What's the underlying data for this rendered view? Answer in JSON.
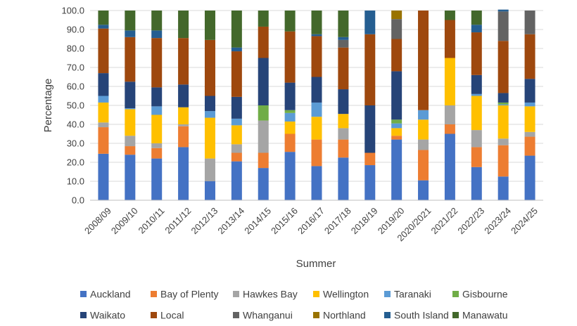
{
  "chart_data": {
    "type": "bar",
    "stacked": true,
    "title": "",
    "xlabel": "Summer",
    "ylabel": "Percentage",
    "ylim": [
      0,
      100
    ],
    "yticks": [
      "0.0",
      "10.0",
      "20.0",
      "30.0",
      "40.0",
      "50.0",
      "60.0",
      "70.0",
      "80.0",
      "90.0",
      "100.0"
    ],
    "grid": true,
    "legend_position": "bottom",
    "categories": [
      "2008/09",
      "2009/10",
      "2010/11",
      "2011/12",
      "2012/13",
      "2013/14",
      "2014/15",
      "2015/16",
      "2016/17",
      "2017/18",
      "2018/19",
      "2019/20",
      "2020/2021",
      "2021/22",
      "2022/23",
      "2023/24",
      "2024/25"
    ],
    "series": [
      {
        "name": "Auckland",
        "color": "#4472C4",
        "values": [
          24.5,
          24.0,
          22.0,
          28.0,
          10.0,
          20.5,
          17.0,
          25.5,
          18.0,
          22.5,
          18.5,
          32.0,
          10.5,
          35.0,
          17.5,
          12.5,
          23.5
        ]
      },
      {
        "name": "Bay of Plenty",
        "color": "#ED7D31",
        "values": [
          14.0,
          4.5,
          5.5,
          11.0,
          0,
          4.5,
          8.0,
          9.5,
          14.0,
          9.5,
          6.5,
          2.0,
          16.0,
          5.0,
          10.5,
          16.5,
          10.0
        ]
      },
      {
        "name": "Hawkes Bay",
        "color": "#A5A5A5",
        "values": [
          2.5,
          5.5,
          2.5,
          1.0,
          12.0,
          4.5,
          17.0,
          0,
          0,
          6.0,
          0,
          0,
          5.5,
          10.0,
          9.0,
          3.5,
          2.5
        ]
      },
      {
        "name": "Wellington",
        "color": "#FFC000",
        "values": [
          10.5,
          14.0,
          15.0,
          9.0,
          21.5,
          10.0,
          0,
          6.5,
          12.0,
          7.5,
          0,
          4.0,
          10.5,
          25.0,
          18.0,
          17.5,
          13.5
        ]
      },
      {
        "name": "Taranaki",
        "color": "#5B9BD5",
        "values": [
          3.5,
          0.5,
          4.5,
          0,
          3.5,
          3.5,
          0,
          4.5,
          7.5,
          0,
          0,
          2.5,
          5.0,
          0,
          1.0,
          0.5,
          2.0
        ]
      },
      {
        "name": "Gisbourne",
        "color": "#70AD47",
        "values": [
          0,
          0,
          0,
          0,
          0,
          0,
          8.0,
          1.5,
          0,
          0,
          0,
          2.0,
          0,
          0,
          0,
          1.0,
          0
        ]
      },
      {
        "name": "Waikato",
        "color": "#264478",
        "values": [
          12.0,
          14.0,
          10.0,
          12.0,
          8.0,
          11.5,
          25.0,
          14.5,
          13.5,
          13.0,
          25.0,
          25.5,
          0,
          0,
          10.0,
          5.0,
          12.5
        ]
      },
      {
        "name": "Local",
        "color": "#9E480E",
        "values": [
          23.5,
          23.5,
          26.0,
          24.5,
          29.5,
          24.0,
          16.5,
          27.0,
          21.5,
          22.0,
          37.5,
          17.0,
          52.5,
          20.0,
          22.5,
          27.5,
          23.5
        ]
      },
      {
        "name": "Whanganui",
        "color": "#636363",
        "values": [
          0,
          0,
          0,
          0,
          0,
          0,
          0,
          0,
          0,
          4.0,
          0,
          10.5,
          0,
          0,
          0,
          15.5,
          12.5
        ]
      },
      {
        "name": "Northland",
        "color": "#997300",
        "values": [
          0,
          0,
          0,
          0,
          0,
          0,
          0,
          0,
          0,
          0,
          0,
          4.5,
          0,
          0,
          0,
          0,
          0
        ]
      },
      {
        "name": "South Island",
        "color": "#255E91",
        "values": [
          2.0,
          3.5,
          4.0,
          0,
          0,
          2.0,
          0,
          0,
          1.0,
          1.5,
          12.5,
          0,
          0,
          0,
          4.0,
          1.0,
          0
        ]
      },
      {
        "name": "Manawatu",
        "color": "#43682B",
        "values": [
          7.5,
          10.5,
          10.5,
          14.5,
          15.5,
          19.5,
          8.5,
          11.0,
          12.5,
          14.0,
          0,
          0,
          0,
          5.0,
          7.5,
          0,
          0
        ]
      }
    ]
  }
}
